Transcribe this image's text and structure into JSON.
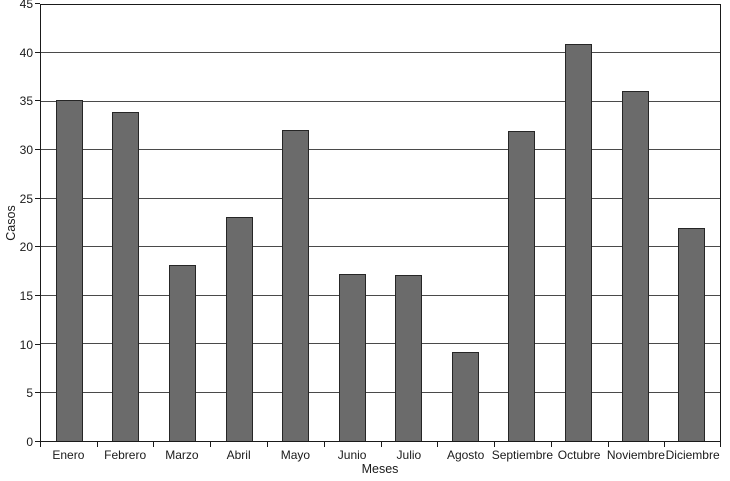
{
  "chart_data": {
    "type": "bar",
    "title": "",
    "xlabel": "Meses",
    "ylabel": "Casos",
    "categories": [
      "Enero",
      "Febrero",
      "Marzo",
      "Abril",
      "Mayo",
      "Junio",
      "Julio",
      "Agosto",
      "Septiembre",
      "Octubre",
      "Noviembre",
      "Diciembre"
    ],
    "values": [
      35.2,
      34.0,
      18.2,
      23.1,
      32.1,
      17.2,
      17.1,
      9.2,
      32.0,
      41.0,
      36.1,
      22.0
    ],
    "ylim": [
      0,
      45
    ],
    "ytick_step": 5,
    "ytick_labels": [
      "0",
      "5",
      "10",
      "15",
      "20",
      "25",
      "30",
      "35",
      "40",
      "45"
    ],
    "grid": true,
    "legend_position": "none",
    "colors": {
      "bar_fill": "#6b6b6b",
      "bar_border": "#262626",
      "grid_line": "#4a4a4a",
      "axis_frame": "#1a1a1a",
      "text": "#1a1a1a",
      "background": "#ffffff"
    }
  }
}
